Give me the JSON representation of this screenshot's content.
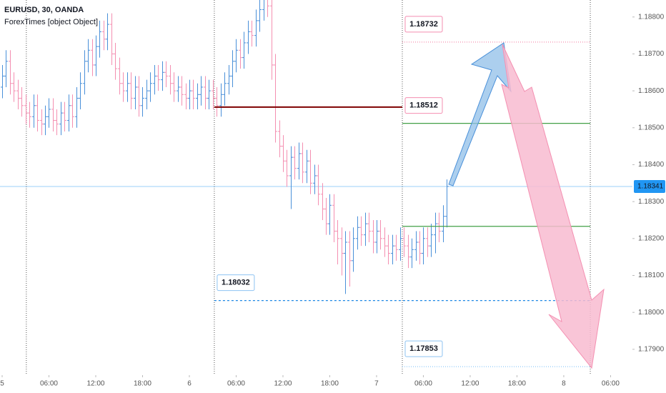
{
  "chart_data": {
    "type": "ohlc",
    "title": "EURUSD, 30, OANDA",
    "subtitle": "ForexTimes [object Object]",
    "up_color": "#4a90d9",
    "down_color": "#f48fb1",
    "x": [
      0,
      0.5,
      1,
      1.5,
      2,
      2.5,
      3,
      3.5,
      4,
      4.5,
      5,
      5.5,
      6,
      6.5,
      7,
      7.5,
      8,
      8.5,
      9,
      9.5,
      10,
      10.5,
      11,
      11.5,
      12,
      12.5,
      13,
      13.5,
      14,
      14.5,
      15,
      15.5,
      16,
      16.5,
      17,
      17.5,
      18,
      18.5,
      19,
      19.5,
      20,
      20.5,
      21,
      21.5,
      22,
      22.5,
      23,
      23.5,
      24,
      24.5,
      25,
      25.5,
      26,
      26.5,
      27,
      27.5,
      28,
      28.5,
      29,
      29.5,
      30,
      30.5,
      31,
      31.5,
      32,
      32.5,
      33,
      33.5,
      34,
      34.5,
      35,
      35.5,
      36,
      36.5,
      37,
      37.5,
      38,
      38.5,
      39,
      39.5,
      40,
      40.5,
      41,
      41.5,
      42,
      42.5,
      43,
      43.5,
      44,
      44.5,
      45,
      45.5,
      46,
      46.5,
      47,
      47.5,
      48,
      48.5,
      49,
      49.5,
      50,
      50.5,
      51,
      51.5,
      52,
      52.5,
      53,
      53.5,
      54,
      54.5,
      55,
      55.5,
      56,
      56.5,
      57
    ],
    "ohlc": [
      [
        1.1861,
        1.1867,
        1.1858,
        1.1864
      ],
      [
        1.1864,
        1.1871,
        1.1861,
        1.1868
      ],
      [
        1.1868,
        1.1871,
        1.1859,
        1.1862
      ],
      [
        1.1862,
        1.1865,
        1.1857,
        1.186
      ],
      [
        1.186,
        1.1863,
        1.1855,
        1.1858
      ],
      [
        1.1858,
        1.1861,
        1.1853,
        1.1856
      ],
      [
        1.1856,
        1.1859,
        1.1851,
        1.1854
      ],
      [
        1.1854,
        1.1857,
        1.185,
        1.1853
      ],
      [
        1.1853,
        1.1859,
        1.185,
        1.1856
      ],
      [
        1.1856,
        1.1859,
        1.1849,
        1.1852
      ],
      [
        1.1852,
        1.1855,
        1.1848,
        1.1851
      ],
      [
        1.1851,
        1.1856,
        1.1848,
        1.1853
      ],
      [
        1.1853,
        1.1858,
        1.185,
        1.1855
      ],
      [
        1.1855,
        1.1858,
        1.1849,
        1.1852
      ],
      [
        1.1852,
        1.1855,
        1.1848,
        1.1851
      ],
      [
        1.1851,
        1.1857,
        1.1848,
        1.1854
      ],
      [
        1.1854,
        1.1857,
        1.1849,
        1.1852
      ],
      [
        1.1852,
        1.1859,
        1.1849,
        1.1856
      ],
      [
        1.1856,
        1.1859,
        1.185,
        1.1853
      ],
      [
        1.1853,
        1.1861,
        1.185,
        1.1858
      ],
      [
        1.1858,
        1.1865,
        1.1855,
        1.1862
      ],
      [
        1.1862,
        1.1871,
        1.1859,
        1.1868
      ],
      [
        1.1868,
        1.1874,
        1.1865,
        1.1871
      ],
      [
        1.1871,
        1.1874,
        1.1864,
        1.1867
      ],
      [
        1.1867,
        1.1875,
        1.1864,
        1.1872
      ],
      [
        1.1872,
        1.1879,
        1.1869,
        1.1876
      ],
      [
        1.1876,
        1.1879,
        1.1871,
        1.1874
      ],
      [
        1.1874,
        1.1881,
        1.1871,
        1.1878
      ],
      [
        1.1878,
        1.1881,
        1.1867,
        1.187
      ],
      [
        1.187,
        1.1873,
        1.1863,
        1.1866
      ],
      [
        1.1866,
        1.1869,
        1.1859,
        1.1862
      ],
      [
        1.1862,
        1.1865,
        1.1857,
        1.186
      ],
      [
        1.186,
        1.1865,
        1.1857,
        1.1862
      ],
      [
        1.1862,
        1.1865,
        1.1855,
        1.1858
      ],
      [
        1.1858,
        1.1864,
        1.1855,
        1.1861
      ],
      [
        1.1861,
        1.1864,
        1.1853,
        1.1856
      ],
      [
        1.1856,
        1.1861,
        1.1853,
        1.1858
      ],
      [
        1.1858,
        1.1863,
        1.1855,
        1.186
      ],
      [
        1.186,
        1.1865,
        1.1857,
        1.1862
      ],
      [
        1.1862,
        1.1867,
        1.1859,
        1.1864
      ],
      [
        1.1864,
        1.1867,
        1.186,
        1.1863
      ],
      [
        1.1863,
        1.1868,
        1.186,
        1.1865
      ],
      [
        1.1865,
        1.1868,
        1.1861,
        1.1864
      ],
      [
        1.1864,
        1.1867,
        1.1859,
        1.1862
      ],
      [
        1.1862,
        1.1865,
        1.1857,
        1.186
      ],
      [
        1.186,
        1.1864,
        1.1857,
        1.1861
      ],
      [
        1.1861,
        1.1864,
        1.1856,
        1.1859
      ],
      [
        1.1859,
        1.1862,
        1.1855,
        1.1858
      ],
      [
        1.1858,
        1.1863,
        1.1855,
        1.186
      ],
      [
        1.186,
        1.1863,
        1.1855,
        1.1858
      ],
      [
        1.1858,
        1.1862,
        1.1855,
        1.1859
      ],
      [
        1.1859,
        1.1864,
        1.1856,
        1.1861
      ],
      [
        1.1861,
        1.1864,
        1.1855,
        1.1858
      ],
      [
        1.1858,
        1.1863,
        1.1855,
        1.186
      ],
      [
        1.186,
        1.1863,
        1.1855,
        1.1858
      ],
      [
        1.1858,
        1.1861,
        1.1853,
        1.1856
      ],
      [
        1.1856,
        1.1862,
        1.1853,
        1.1859
      ],
      [
        1.1859,
        1.1865,
        1.1856,
        1.1862
      ],
      [
        1.1862,
        1.1867,
        1.1859,
        1.1864
      ],
      [
        1.1864,
        1.1871,
        1.1861,
        1.1868
      ],
      [
        1.1868,
        1.1874,
        1.1865,
        1.1871
      ],
      [
        1.1871,
        1.1874,
        1.1866,
        1.1869
      ],
      [
        1.1869,
        1.1876,
        1.1866,
        1.1873
      ],
      [
        1.1873,
        1.1879,
        1.187,
        1.1876
      ],
      [
        1.1876,
        1.1879,
        1.1872,
        1.1875
      ],
      [
        1.1875,
        1.1882,
        1.1872,
        1.1879
      ],
      [
        1.1879,
        1.1885,
        1.1876,
        1.1882
      ],
      [
        1.1882,
        1.1888,
        1.1879,
        1.1885
      ],
      [
        1.1885,
        1.1888,
        1.188,
        1.1883
      ],
      [
        1.1883,
        1.1886,
        1.1863,
        1.1867
      ],
      [
        1.1867,
        1.187,
        1.1846,
        1.1849
      ],
      [
        1.1849,
        1.1852,
        1.1842,
        1.1845
      ],
      [
        1.1845,
        1.1848,
        1.1838,
        1.1841
      ],
      [
        1.1841,
        1.1844,
        1.1834,
        1.1837
      ],
      [
        1.1837,
        1.1845,
        1.1828,
        1.1842
      ],
      [
        1.1842,
        1.1845,
        1.1836,
        1.1839
      ],
      [
        1.1839,
        1.1846,
        1.1836,
        1.1843
      ],
      [
        1.1843,
        1.1846,
        1.1835,
        1.1838
      ],
      [
        1.1838,
        1.1844,
        1.1835,
        1.1841
      ],
      [
        1.1841,
        1.1844,
        1.1832,
        1.1835
      ],
      [
        1.1835,
        1.184,
        1.1832,
        1.1837
      ],
      [
        1.1837,
        1.184,
        1.1829,
        1.1832
      ],
      [
        1.1832,
        1.1835,
        1.1825,
        1.1828
      ],
      [
        1.1828,
        1.1831,
        1.1821,
        1.1824
      ],
      [
        1.1824,
        1.1832,
        1.1821,
        1.1829
      ],
      [
        1.1829,
        1.1832,
        1.1819,
        1.1822
      ],
      [
        1.1822,
        1.1825,
        1.1813,
        1.182
      ],
      [
        1.182,
        1.1823,
        1.181,
        1.1816
      ],
      [
        1.1816,
        1.1822,
        1.1805,
        1.1819
      ],
      [
        1.1819,
        1.1822,
        1.1807,
        1.1814
      ],
      [
        1.1814,
        1.1823,
        1.1811,
        1.182
      ],
      [
        1.182,
        1.1826,
        1.1817,
        1.1823
      ],
      [
        1.1823,
        1.1826,
        1.1818,
        1.1821
      ],
      [
        1.1821,
        1.1827,
        1.1818,
        1.1824
      ],
      [
        1.1824,
        1.1827,
        1.1819,
        1.1822
      ],
      [
        1.1822,
        1.1825,
        1.1816,
        1.1819
      ],
      [
        1.1819,
        1.1825,
        1.1816,
        1.1822
      ],
      [
        1.1822,
        1.1825,
        1.1817,
        1.182
      ],
      [
        1.182,
        1.1823,
        1.1815,
        1.1818
      ],
      [
        1.1818,
        1.1821,
        1.1813,
        1.1816
      ],
      [
        1.1816,
        1.1821,
        1.1813,
        1.1818
      ],
      [
        1.1818,
        1.1821,
        1.1814,
        1.1817
      ],
      [
        1.1817,
        1.1823,
        1.1814,
        1.182
      ],
      [
        1.182,
        1.1823,
        1.1815,
        1.1818
      ],
      [
        1.1818,
        1.1821,
        1.1812,
        1.1815
      ],
      [
        1.1815,
        1.182,
        1.1812,
        1.1817
      ],
      [
        1.1817,
        1.1822,
        1.1814,
        1.1819
      ],
      [
        1.1819,
        1.1822,
        1.1813,
        1.1816
      ],
      [
        1.1816,
        1.1823,
        1.1813,
        1.182
      ],
      [
        1.182,
        1.1823,
        1.1815,
        1.1818
      ],
      [
        1.1818,
        1.1824,
        1.1815,
        1.1821
      ],
      [
        1.1821,
        1.1827,
        1.1816,
        1.1824
      ],
      [
        1.1824,
        1.1827,
        1.1819,
        1.1822
      ],
      [
        1.1822,
        1.1829,
        1.1819,
        1.1826
      ],
      [
        1.1826,
        1.1836,
        1.1823,
        1.18341
      ]
    ],
    "xlim": [
      -0.275,
      80.8
    ],
    "xticks": [
      {
        "value": 0,
        "label": "5"
      },
      {
        "value": 6,
        "label": "06:00"
      },
      {
        "value": 12,
        "label": "12:00"
      },
      {
        "value": 18,
        "label": "18:00"
      },
      {
        "value": 24,
        "label": "6"
      },
      {
        "value": 30,
        "label": "06:00"
      },
      {
        "value": 36,
        "label": "12:00"
      },
      {
        "value": 42,
        "label": "18:00"
      },
      {
        "value": 48,
        "label": "7"
      },
      {
        "value": 54,
        "label": "06:00"
      },
      {
        "value": 60,
        "label": "12:00"
      },
      {
        "value": 66,
        "label": "18:00"
      },
      {
        "value": 72,
        "label": "8"
      },
      {
        "value": 78,
        "label": "06:00"
      }
    ],
    "ylim": [
      1.1783,
      1.18846
    ],
    "yticks": [
      {
        "value": 1.179,
        "label": "1.17900"
      },
      {
        "value": 1.18,
        "label": "1.18000"
      },
      {
        "value": 1.181,
        "label": "1.18100"
      },
      {
        "value": 1.182,
        "label": "1.18200"
      },
      {
        "value": 1.183,
        "label": "1.18300"
      },
      {
        "value": 1.184,
        "label": "1.18400"
      },
      {
        "value": 1.185,
        "label": "1.18500"
      },
      {
        "value": 1.186,
        "label": "1.18600"
      },
      {
        "value": 1.187,
        "label": "1.18700"
      },
      {
        "value": 1.188,
        "label": "1.18800"
      }
    ],
    "session_breaks": [
      3.1,
      27.2,
      51.3,
      75.4
    ],
    "last_price": 1.18341,
    "last_price_color": "#2196f3",
    "levels": [
      {
        "value": 1.18732,
        "color": "#f48fb1",
        "dash": "1,2",
        "from": 51.3,
        "to": 75.4,
        "labeled": true,
        "label_color": "#e91e63"
      },
      {
        "value": 1.18556,
        "color": "#7f0000",
        "dash": "none",
        "from": 27.2,
        "to": 51.3,
        "labeled": false
      },
      {
        "value": 1.18512,
        "color": "#43a047",
        "dash": "none",
        "from": 51.3,
        "to": 75.4,
        "labeled": true,
        "label_color": "#e91e63"
      },
      {
        "value": 1.18233,
        "color": "#43a047",
        "dash": "none",
        "from": 51.3,
        "to": 75.4,
        "labeled": false
      },
      {
        "value": 1.18032,
        "color": "#1e88e5",
        "dash": "3,3",
        "from": 27.2,
        "to": 75.4,
        "labeled": true,
        "label_color": "#1e88e5"
      },
      {
        "value": 1.17853,
        "color": "#90caf9",
        "dash": "1,2",
        "from": 51.3,
        "to": 75.4,
        "labeled": true,
        "label_color": "#1e88e5"
      }
    ]
  }
}
